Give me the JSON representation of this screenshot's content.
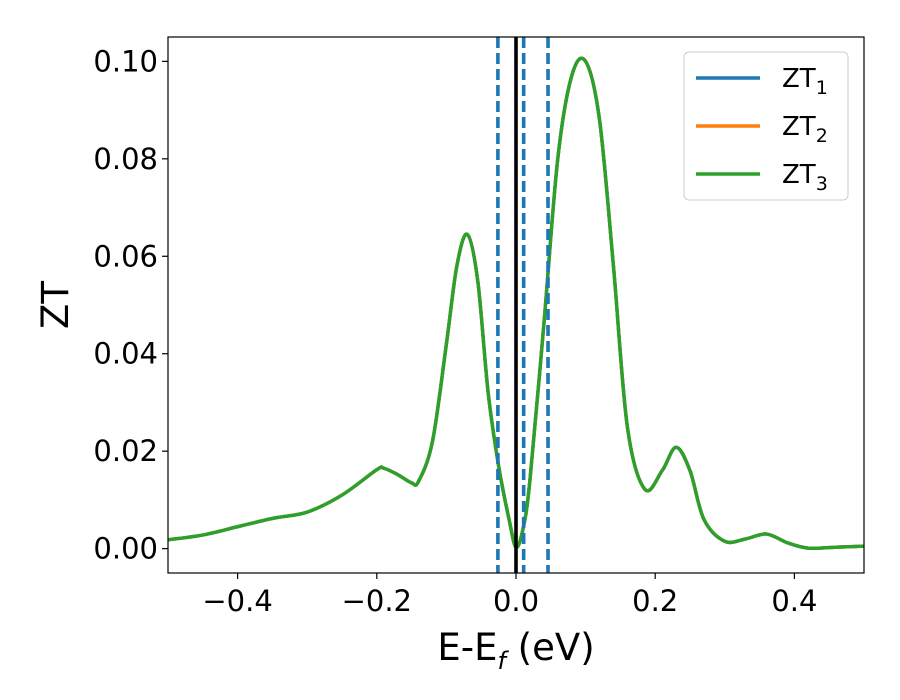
{
  "chart_data": {
    "type": "line",
    "xlabel": "E-E",
    "xlabel_sub": "f",
    "xlabel_unit": " (eV)",
    "ylabel": "ZT",
    "xlim": [
      -0.5,
      0.5
    ],
    "ylim": [
      -0.005,
      0.105
    ],
    "x_ticks": [
      -0.4,
      -0.2,
      0.0,
      0.2,
      0.4
    ],
    "x_tick_labels": [
      "−0.4",
      "−0.2",
      "0.0",
      "0.2",
      "0.4"
    ],
    "y_ticks": [
      0.0,
      0.02,
      0.04,
      0.06,
      0.08,
      0.1
    ],
    "y_tick_labels": [
      "0.00",
      "0.02",
      "0.04",
      "0.06",
      "0.08",
      "0.10"
    ],
    "grid": false,
    "legend_position": "top-right",
    "series": [
      {
        "name": "ZT",
        "name_sub": "1",
        "color": "#1f77b4",
        "x": [
          -0.5,
          -0.45,
          -0.4,
          -0.35,
          -0.3,
          -0.25,
          -0.2,
          -0.19,
          -0.17,
          -0.15,
          -0.14,
          -0.12,
          -0.1,
          -0.085,
          -0.07,
          -0.055,
          -0.04,
          -0.025,
          -0.01,
          0.0,
          0.01,
          0.02,
          0.04,
          0.06,
          0.08,
          0.1,
          0.12,
          0.14,
          0.16,
          0.185,
          0.21,
          0.23,
          0.25,
          0.27,
          0.3,
          0.33,
          0.36,
          0.39,
          0.42,
          0.46,
          0.5
        ],
        "y": [
          0.0018,
          0.0028,
          0.0045,
          0.0062,
          0.0075,
          0.011,
          0.0162,
          0.0165,
          0.0152,
          0.0135,
          0.0138,
          0.022,
          0.042,
          0.058,
          0.0645,
          0.055,
          0.032,
          0.017,
          0.006,
          0.0003,
          0.004,
          0.014,
          0.046,
          0.08,
          0.097,
          0.1,
          0.088,
          0.058,
          0.025,
          0.0122,
          0.016,
          0.0208,
          0.016,
          0.006,
          0.0015,
          0.002,
          0.003,
          0.0012,
          0.0001,
          0.0003,
          0.0005
        ]
      },
      {
        "name": "ZT",
        "name_sub": "2",
        "color": "#ff7f0e",
        "x": [
          -0.5,
          -0.45,
          -0.4,
          -0.35,
          -0.3,
          -0.25,
          -0.2,
          -0.19,
          -0.17,
          -0.15,
          -0.14,
          -0.12,
          -0.1,
          -0.085,
          -0.07,
          -0.055,
          -0.04,
          -0.025,
          -0.01,
          0.0,
          0.01,
          0.02,
          0.04,
          0.06,
          0.08,
          0.1,
          0.12,
          0.14,
          0.16,
          0.185,
          0.21,
          0.23,
          0.25,
          0.27,
          0.3,
          0.33,
          0.36,
          0.39,
          0.42,
          0.46,
          0.5
        ],
        "y": [
          0.0018,
          0.0028,
          0.0045,
          0.0062,
          0.0075,
          0.011,
          0.0162,
          0.0165,
          0.0152,
          0.0135,
          0.0138,
          0.022,
          0.042,
          0.058,
          0.0645,
          0.055,
          0.032,
          0.017,
          0.006,
          0.0003,
          0.004,
          0.014,
          0.046,
          0.08,
          0.097,
          0.1,
          0.088,
          0.058,
          0.025,
          0.0122,
          0.016,
          0.0208,
          0.016,
          0.006,
          0.0015,
          0.002,
          0.003,
          0.0012,
          0.0001,
          0.0003,
          0.0005
        ]
      },
      {
        "name": "ZT",
        "name_sub": "3",
        "color": "#2ca02c",
        "x": [
          -0.5,
          -0.45,
          -0.4,
          -0.35,
          -0.3,
          -0.25,
          -0.2,
          -0.19,
          -0.17,
          -0.15,
          -0.14,
          -0.12,
          -0.1,
          -0.085,
          -0.07,
          -0.055,
          -0.04,
          -0.025,
          -0.01,
          0.0,
          0.01,
          0.02,
          0.04,
          0.06,
          0.08,
          0.1,
          0.12,
          0.14,
          0.16,
          0.185,
          0.21,
          0.23,
          0.25,
          0.27,
          0.3,
          0.33,
          0.36,
          0.39,
          0.42,
          0.46,
          0.5
        ],
        "y": [
          0.0018,
          0.0028,
          0.0045,
          0.0062,
          0.0075,
          0.011,
          0.0162,
          0.0165,
          0.0152,
          0.0135,
          0.0138,
          0.022,
          0.042,
          0.058,
          0.0645,
          0.055,
          0.032,
          0.017,
          0.006,
          0.0003,
          0.004,
          0.014,
          0.046,
          0.08,
          0.097,
          0.1,
          0.088,
          0.058,
          0.025,
          0.0122,
          0.016,
          0.0208,
          0.016,
          0.006,
          0.0015,
          0.002,
          0.003,
          0.0012,
          0.0001,
          0.0003,
          0.0005
        ]
      }
    ],
    "vertical_lines": [
      {
        "x": 0.0,
        "style": "solid",
        "color": "#000000"
      },
      {
        "x": -0.026,
        "style": "dashed",
        "color": "#1f77b4"
      },
      {
        "x": 0.011,
        "style": "dashed",
        "color": "#1f77b4"
      },
      {
        "x": 0.046,
        "style": "dashed",
        "color": "#1f77b4"
      }
    ]
  }
}
